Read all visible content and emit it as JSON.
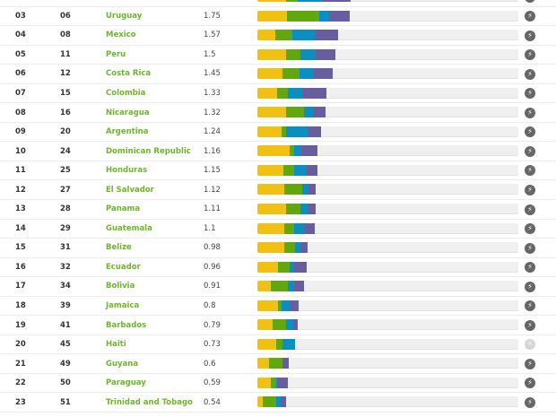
{
  "colors": {
    "segment_1": "#f0c112",
    "segment_2": "#63a70f",
    "segment_3": "#0b8fc1",
    "segment_4": "#675e9f",
    "track": "#f0f0f0",
    "country": "#6db52b",
    "icon": "#666666",
    "icon_disabled": "#d6d6d6"
  },
  "row_icon": "lightning-circle-icon",
  "rows": [
    {
      "rank": "",
      "global_rank": "",
      "country": "",
      "score": "",
      "segments_pct": [
        11.0,
        4.5,
        9.6,
        10.7
      ],
      "icon_enabled": true
    },
    {
      "rank": "03",
      "global_rank": "06",
      "country": "Uruguay",
      "score": "1.75",
      "segments_pct": [
        11.3,
        12.4,
        3.8,
        7.9
      ],
      "icon_enabled": true
    },
    {
      "rank": "04",
      "global_rank": "08",
      "country": "Mexico",
      "score": "1.57",
      "segments_pct": [
        6.9,
        6.5,
        8.6,
        8.9
      ],
      "icon_enabled": true
    },
    {
      "rank": "05",
      "global_rank": "11",
      "country": "Peru",
      "score": "1.5",
      "segments_pct": [
        11.0,
        5.5,
        5.8,
        7.6
      ],
      "icon_enabled": true
    },
    {
      "rank": "06",
      "global_rank": "12",
      "country": "Costa Rica",
      "score": "1.45",
      "segments_pct": [
        9.6,
        6.5,
        5.5,
        7.2
      ],
      "icon_enabled": true
    },
    {
      "rank": "07",
      "global_rank": "15",
      "country": "Colombia",
      "score": "1.33",
      "segments_pct": [
        7.6,
        4.1,
        5.8,
        8.9
      ],
      "icon_enabled": true
    },
    {
      "rank": "08",
      "global_rank": "16",
      "country": "Nicaragua",
      "score": "1.32",
      "segments_pct": [
        11.0,
        6.9,
        3.4,
        4.8
      ],
      "icon_enabled": true
    },
    {
      "rank": "09",
      "global_rank": "20",
      "country": "Argentina",
      "score": "1.24",
      "segments_pct": [
        9.3,
        1.7,
        8.2,
        5.2
      ],
      "icon_enabled": true
    },
    {
      "rank": "10",
      "global_rank": "24",
      "country": "Dominican Republic",
      "score": "1.16",
      "segments_pct": [
        12.4,
        1.7,
        2.7,
        6.2
      ],
      "icon_enabled": true
    },
    {
      "rank": "11",
      "global_rank": "25",
      "country": "Honduras",
      "score": "1.15",
      "segments_pct": [
        10.0,
        4.1,
        4.5,
        4.5
      ],
      "icon_enabled": true
    },
    {
      "rank": "12",
      "global_rank": "27",
      "country": "El Salvador",
      "score": "1.12",
      "segments_pct": [
        10.3,
        6.9,
        2.4,
        2.7
      ],
      "icon_enabled": true
    },
    {
      "rank": "13",
      "global_rank": "28",
      "country": "Panama",
      "score": "1.11",
      "segments_pct": [
        11.0,
        5.5,
        3.1,
        2.7
      ],
      "icon_enabled": true
    },
    {
      "rank": "14",
      "global_rank": "29",
      "country": "Guatemala",
      "score": "1.1",
      "segments_pct": [
        10.3,
        3.8,
        3.8,
        4.1
      ],
      "icon_enabled": true
    },
    {
      "rank": "15",
      "global_rank": "31",
      "country": "Belize",
      "score": "0.98",
      "segments_pct": [
        10.3,
        4.1,
        2.1,
        2.7
      ],
      "icon_enabled": true
    },
    {
      "rank": "16",
      "global_rank": "32",
      "country": "Ecuador",
      "score": "0.96",
      "segments_pct": [
        7.9,
        4.5,
        1.7,
        4.8
      ],
      "icon_enabled": true
    },
    {
      "rank": "17",
      "global_rank": "34",
      "country": "Bolivia",
      "score": "0.91",
      "segments_pct": [
        5.2,
        6.5,
        2.4,
        3.8
      ],
      "icon_enabled": true
    },
    {
      "rank": "18",
      "global_rank": "39",
      "country": "Jamaica",
      "score": "0.8",
      "segments_pct": [
        7.9,
        1.4,
        3.1,
        3.4
      ],
      "icon_enabled": true
    },
    {
      "rank": "19",
      "global_rank": "41",
      "country": "Barbados",
      "score": "0.79",
      "segments_pct": [
        5.8,
        5.2,
        2.7,
        1.7
      ],
      "icon_enabled": true
    },
    {
      "rank": "20",
      "global_rank": "45",
      "country": "Haiti",
      "score": "0.73",
      "segments_pct": [
        7.2,
        2.4,
        4.8,
        0
      ],
      "icon_enabled": false
    },
    {
      "rank": "21",
      "global_rank": "49",
      "country": "Guyana",
      "score": "0.6",
      "segments_pct": [
        4.5,
        5.2,
        0,
        2.4
      ],
      "icon_enabled": true
    },
    {
      "rank": "22",
      "global_rank": "50",
      "country": "Paraguay",
      "score": "0.59",
      "segments_pct": [
        5.2,
        2.1,
        0.7,
        3.8
      ],
      "icon_enabled": true
    },
    {
      "rank": "23",
      "global_rank": "51",
      "country": "Trinidad and Tobago",
      "score": "0.54",
      "segments_pct": [
        2.1,
        5.2,
        1.7,
        2.1
      ],
      "icon_enabled": true
    }
  ]
}
